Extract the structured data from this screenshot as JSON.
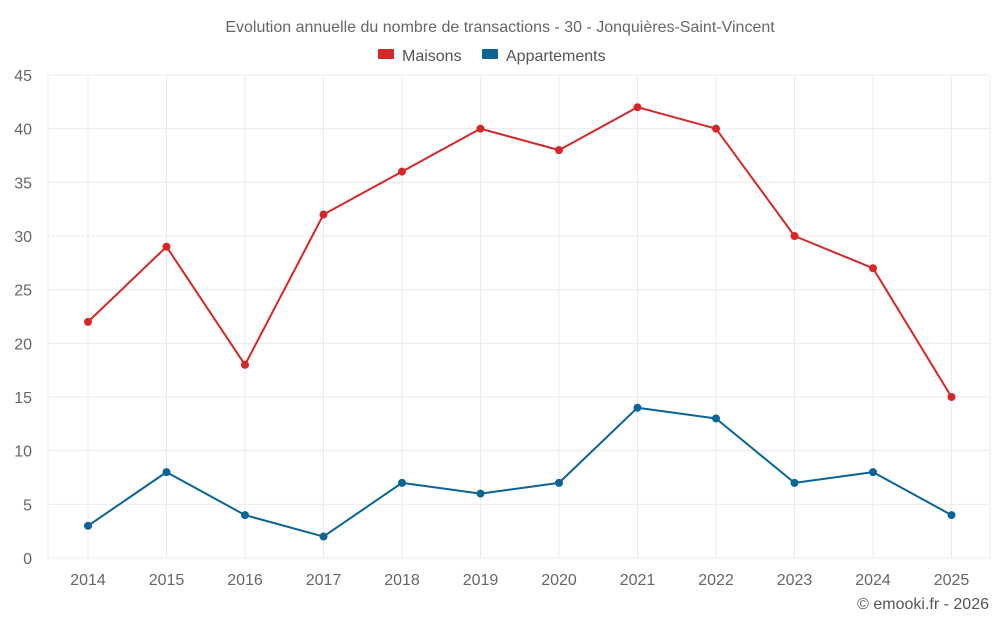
{
  "chart_data": {
    "type": "line",
    "title": "Evolution annuelle du nombre de transactions - 30 - Jonquières-Saint-Vincent",
    "categories": [
      "2014",
      "2015",
      "2016",
      "2017",
      "2018",
      "2019",
      "2020",
      "2021",
      "2022",
      "2023",
      "2024",
      "2025"
    ],
    "series": [
      {
        "name": "Maisons",
        "color": "#d62728",
        "values": [
          22,
          29,
          18,
          32,
          36,
          40,
          38,
          42,
          40,
          30,
          27,
          15
        ]
      },
      {
        "name": "Appartements",
        "color": "#0a6496",
        "values": [
          3,
          8,
          4,
          2,
          7,
          6,
          7,
          14,
          13,
          7,
          8,
          4
        ]
      }
    ],
    "ylim": [
      0,
      45
    ],
    "yticks": [
      "0",
      "5",
      "10",
      "15",
      "20",
      "25",
      "30",
      "35",
      "40",
      "45"
    ],
    "grid": true,
    "legend_position": "top-center",
    "xlabel": "",
    "ylabel": ""
  },
  "credit": "© emooki.fr - 2026"
}
